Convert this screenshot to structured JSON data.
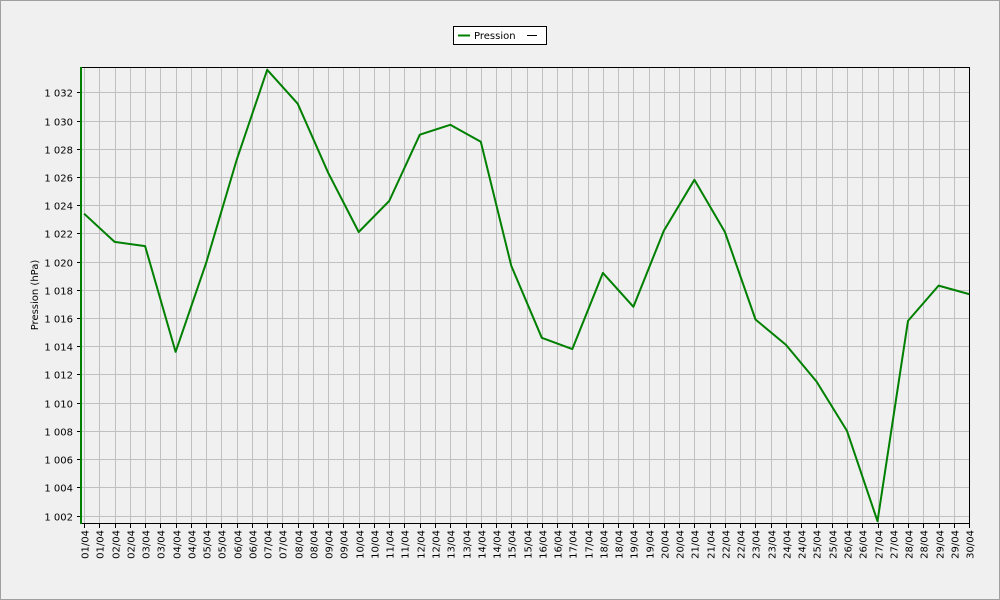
{
  "chart_data": {
    "type": "line",
    "y_label": "Pression (hPa)",
    "legend": "top",
    "grid": true,
    "xlim": [
      0.9,
      30.03
    ],
    "ylim": [
      1001.4,
      1033.8
    ],
    "yticks": [
      {
        "value": 1002,
        "label": "1 002"
      },
      {
        "value": 1004,
        "label": "1 004"
      },
      {
        "value": 1006,
        "label": "1 006"
      },
      {
        "value": 1008,
        "label": "1 008"
      },
      {
        "value": 1010,
        "label": "1 010"
      },
      {
        "value": 1012,
        "label": "1 012"
      },
      {
        "value": 1014,
        "label": "1 014"
      },
      {
        "value": 1016,
        "label": "1 016"
      },
      {
        "value": 1018,
        "label": "1 018"
      },
      {
        "value": 1020,
        "label": "1 020"
      },
      {
        "value": 1022,
        "label": "1 022"
      },
      {
        "value": 1024,
        "label": "1 024"
      },
      {
        "value": 1026,
        "label": "1 026"
      },
      {
        "value": 1028,
        "label": "1 028"
      },
      {
        "value": 1030,
        "label": "1 030"
      },
      {
        "value": 1032,
        "label": "1 032"
      }
    ],
    "xticks": [
      {
        "value": 1,
        "label": "01/04"
      },
      {
        "value": 1.5,
        "label": "01/04"
      },
      {
        "value": 2,
        "label": "02/04"
      },
      {
        "value": 2.5,
        "label": "02/04"
      },
      {
        "value": 3,
        "label": "03/04"
      },
      {
        "value": 3.5,
        "label": "03/04"
      },
      {
        "value": 4,
        "label": "04/04"
      },
      {
        "value": 4.5,
        "label": "04/04"
      },
      {
        "value": 5,
        "label": "05/04"
      },
      {
        "value": 5.5,
        "label": "05/04"
      },
      {
        "value": 6,
        "label": "06/04"
      },
      {
        "value": 6.5,
        "label": "06/04"
      },
      {
        "value": 7,
        "label": "07/04"
      },
      {
        "value": 7.5,
        "label": "07/04"
      },
      {
        "value": 8,
        "label": "08/04"
      },
      {
        "value": 8.5,
        "label": "08/04"
      },
      {
        "value": 9,
        "label": "09/04"
      },
      {
        "value": 9.5,
        "label": "09/04"
      },
      {
        "value": 10,
        "label": "10/04"
      },
      {
        "value": 10.5,
        "label": "10/04"
      },
      {
        "value": 11,
        "label": "11/04"
      },
      {
        "value": 11.5,
        "label": "11/04"
      },
      {
        "value": 12,
        "label": "12/04"
      },
      {
        "value": 12.5,
        "label": "12/04"
      },
      {
        "value": 13,
        "label": "13/04"
      },
      {
        "value": 13.5,
        "label": "13/04"
      },
      {
        "value": 14,
        "label": "14/04"
      },
      {
        "value": 14.5,
        "label": "14/04"
      },
      {
        "value": 15,
        "label": "15/04"
      },
      {
        "value": 15.5,
        "label": "15/04"
      },
      {
        "value": 16,
        "label": "16/04"
      },
      {
        "value": 16.5,
        "label": "16/04"
      },
      {
        "value": 17,
        "label": "17/04"
      },
      {
        "value": 17.5,
        "label": "17/04"
      },
      {
        "value": 18,
        "label": "18/04"
      },
      {
        "value": 18.5,
        "label": "18/04"
      },
      {
        "value": 19,
        "label": "19/04"
      },
      {
        "value": 19.5,
        "label": "19/04"
      },
      {
        "value": 20,
        "label": "20/04"
      },
      {
        "value": 20.5,
        "label": "20/04"
      },
      {
        "value": 21,
        "label": "21/04"
      },
      {
        "value": 21.5,
        "label": "21/04"
      },
      {
        "value": 22,
        "label": "22/04"
      },
      {
        "value": 22.5,
        "label": "22/04"
      },
      {
        "value": 23,
        "label": "23/04"
      },
      {
        "value": 23.5,
        "label": "23/04"
      },
      {
        "value": 24,
        "label": "24/04"
      },
      {
        "value": 24.5,
        "label": "24/04"
      },
      {
        "value": 25,
        "label": "25/04"
      },
      {
        "value": 25.5,
        "label": "25/04"
      },
      {
        "value": 26,
        "label": "26/04"
      },
      {
        "value": 26.5,
        "label": "26/04"
      },
      {
        "value": 27,
        "label": "27/04"
      },
      {
        "value": 27.5,
        "label": "27/04"
      },
      {
        "value": 28,
        "label": "28/04"
      },
      {
        "value": 28.5,
        "label": "28/04"
      },
      {
        "value": 29,
        "label": "29/04"
      },
      {
        "value": 29.5,
        "label": "29/04"
      },
      {
        "value": 30,
        "label": "30/04"
      }
    ],
    "x": [
      1,
      2,
      3,
      4,
      5,
      6,
      7,
      8,
      9,
      10,
      11,
      12,
      13,
      14,
      15,
      16,
      17,
      18,
      19,
      20,
      21,
      22,
      23,
      24,
      25,
      26,
      27,
      28,
      29,
      30
    ],
    "series": [
      {
        "name": "Pression",
        "color": "#008000",
        "values": [
          1023.4,
          1021.4,
          1021.1,
          1013.6,
          1019.9,
          1027.2,
          1033.6,
          1031.2,
          1026.3,
          1022.1,
          1024.3,
          1029.0,
          1029.7,
          1028.5,
          1019.7,
          1014.6,
          1013.8,
          1019.2,
          1016.8,
          1022.2,
          1025.8,
          1022.1,
          1015.9,
          1014.1,
          1011.5,
          1008.0,
          1001.6,
          1015.8,
          1018.3,
          1017.7
        ]
      }
    ]
  }
}
